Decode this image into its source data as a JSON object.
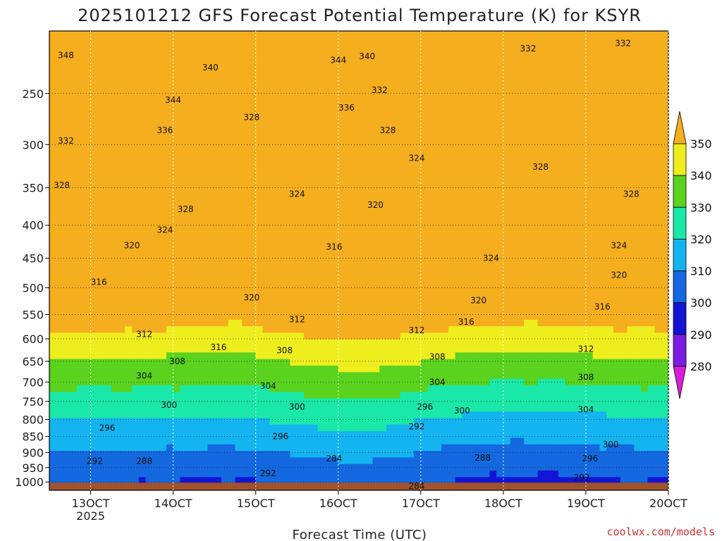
{
  "chart_data": {
    "type": "heatmap",
    "title": "2025101212 GFS Forecast Potential Temperature (K) for KSYR",
    "xlabel": "Forecast Time (UTC)",
    "x_ticks": [
      {
        "label": "13OCT",
        "sublabel": "2025",
        "day": 13
      },
      {
        "label": "14OCT",
        "day": 14
      },
      {
        "label": "15OCT",
        "day": 15
      },
      {
        "label": "16OCT",
        "day": 16
      },
      {
        "label": "17OCT",
        "day": 17
      },
      {
        "label": "18OCT",
        "day": 18
      },
      {
        "label": "19OCT",
        "day": 19
      },
      {
        "label": "20OCT",
        "day": 20
      }
    ],
    "xlim": [
      12.5,
      20.0
    ],
    "y_ticks": [
      250,
      300,
      350,
      400,
      450,
      500,
      550,
      600,
      650,
      700,
      750,
      800,
      850,
      900,
      950,
      1000
    ],
    "ylim": [
      1030,
      200
    ],
    "y_scale": "log",
    "grid": "dotted",
    "colorbar": {
      "levels": [
        280,
        290,
        300,
        310,
        320,
        330,
        340,
        350
      ],
      "colors": [
        "#d91ed9",
        "#7a1de0",
        "#1414d4",
        "#1468e0",
        "#14b4f0",
        "#1ae8a8",
        "#5ad21e",
        "#eeee1e",
        "#f5ae1e"
      ]
    },
    "contour_labels": [
      {
        "value": 348,
        "day": 12.7,
        "p": 218
      },
      {
        "value": 340,
        "day": 14.45,
        "p": 228
      },
      {
        "value": 344,
        "day": 14.0,
        "p": 256
      },
      {
        "value": 336,
        "day": 13.9,
        "p": 285
      },
      {
        "value": 332,
        "day": 12.7,
        "p": 296
      },
      {
        "value": 328,
        "day": 12.65,
        "p": 347
      },
      {
        "value": 328,
        "day": 14.15,
        "p": 378
      },
      {
        "value": 324,
        "day": 13.9,
        "p": 407
      },
      {
        "value": 320,
        "day": 13.5,
        "p": 430
      },
      {
        "value": 316,
        "day": 13.1,
        "p": 490
      },
      {
        "value": 312,
        "day": 13.65,
        "p": 590
      },
      {
        "value": 308,
        "day": 14.05,
        "p": 650
      },
      {
        "value": 304,
        "day": 13.65,
        "p": 685
      },
      {
        "value": 300,
        "day": 13.95,
        "p": 760
      },
      {
        "value": 296,
        "day": 13.2,
        "p": 825
      },
      {
        "value": 292,
        "day": 13.05,
        "p": 928
      },
      {
        "value": 288,
        "day": 13.65,
        "p": 928
      },
      {
        "value": 344,
        "day": 16.0,
        "p": 222
      },
      {
        "value": 340,
        "day": 16.35,
        "p": 219
      },
      {
        "value": 336,
        "day": 16.1,
        "p": 263
      },
      {
        "value": 332,
        "day": 16.5,
        "p": 247
      },
      {
        "value": 328,
        "day": 14.95,
        "p": 272
      },
      {
        "value": 328,
        "day": 16.6,
        "p": 285
      },
      {
        "value": 324,
        "day": 16.95,
        "p": 315
      },
      {
        "value": 324,
        "day": 15.5,
        "p": 358
      },
      {
        "value": 320,
        "day": 16.45,
        "p": 372
      },
      {
        "value": 316,
        "day": 15.95,
        "p": 432
      },
      {
        "value": 320,
        "day": 14.95,
        "p": 518
      },
      {
        "value": 312,
        "day": 15.5,
        "p": 560
      },
      {
        "value": 316,
        "day": 14.55,
        "p": 618
      },
      {
        "value": 308,
        "day": 15.35,
        "p": 625
      },
      {
        "value": 304,
        "day": 15.15,
        "p": 710
      },
      {
        "value": 300,
        "day": 15.5,
        "p": 765
      },
      {
        "value": 296,
        "day": 15.3,
        "p": 850
      },
      {
        "value": 292,
        "day": 15.15,
        "p": 970
      },
      {
        "value": 284,
        "day": 15.95,
        "p": 920
      },
      {
        "value": 312,
        "day": 16.95,
        "p": 582
      },
      {
        "value": 308,
        "day": 17.2,
        "p": 640
      },
      {
        "value": 304,
        "day": 17.2,
        "p": 700
      },
      {
        "value": 296,
        "day": 17.05,
        "p": 765
      },
      {
        "value": 292,
        "day": 16.95,
        "p": 820
      },
      {
        "value": 300,
        "day": 17.5,
        "p": 775
      },
      {
        "value": 284,
        "day": 16.95,
        "p": 1015
      },
      {
        "value": 288,
        "day": 17.75,
        "p": 918
      },
      {
        "value": 320,
        "day": 17.7,
        "p": 523
      },
      {
        "value": 316,
        "day": 17.55,
        "p": 565
      },
      {
        "value": 324,
        "day": 17.85,
        "p": 450
      },
      {
        "value": 328,
        "day": 18.45,
        "p": 325
      },
      {
        "value": 332,
        "day": 18.3,
        "p": 213
      },
      {
        "value": 332,
        "day": 19.45,
        "p": 209
      },
      {
        "value": 328,
        "day": 19.55,
        "p": 358
      },
      {
        "value": 324,
        "day": 19.4,
        "p": 430
      },
      {
        "value": 320,
        "day": 19.4,
        "p": 478
      },
      {
        "value": 316,
        "day": 19.2,
        "p": 535
      },
      {
        "value": 312,
        "day": 19.0,
        "p": 622
      },
      {
        "value": 308,
        "day": 19.0,
        "p": 688
      },
      {
        "value": 304,
        "day": 19.0,
        "p": 772
      },
      {
        "value": 300,
        "day": 19.3,
        "p": 875
      },
      {
        "value": 296,
        "day": 19.05,
        "p": 920
      },
      {
        "value": 292,
        "day": 18.95,
        "p": 985
      }
    ]
  },
  "credit": "coolwx.com/models"
}
